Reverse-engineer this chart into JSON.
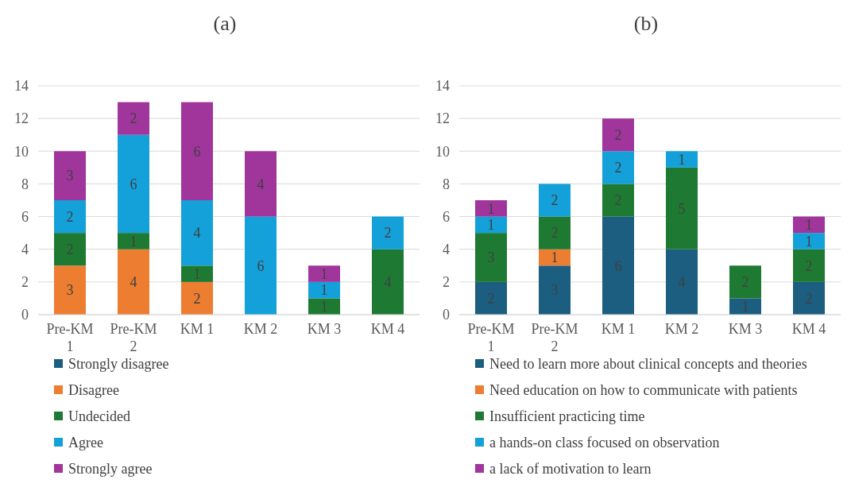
{
  "chart_data": [
    {
      "type": "bar",
      "title": "(a)",
      "stacked": true,
      "data_labels": true,
      "grid": "y",
      "legend": "bottom",
      "categories": [
        "Pre-KM 1",
        "Pre-KM 2",
        "KM 1",
        "KM 2",
        "KM 3",
        "KM 4"
      ],
      "ylim": [
        0,
        14
      ],
      "yticks": [
        0,
        2,
        4,
        6,
        8,
        10,
        12,
        14
      ],
      "series": [
        {
          "name": "Strongly disagree",
          "color": "#1b5e80",
          "values": [
            null,
            null,
            null,
            null,
            null,
            null
          ]
        },
        {
          "name": "Disagree",
          "color": "#ed7d31",
          "values": [
            3,
            4,
            2,
            null,
            null,
            null
          ]
        },
        {
          "name": "Undecided",
          "color": "#1e7a32",
          "values": [
            2,
            1,
            1,
            null,
            1,
            4
          ]
        },
        {
          "name": "Agree",
          "color": "#14a0d8",
          "values": [
            2,
            6,
            4,
            6,
            1,
            2
          ]
        },
        {
          "name": "Strongly agree",
          "color": "#a0359b",
          "values": [
            3,
            2,
            6,
            4,
            1,
            null
          ]
        }
      ]
    },
    {
      "type": "bar",
      "title": "(b)",
      "stacked": true,
      "data_labels": true,
      "grid": "y",
      "legend": "bottom",
      "categories": [
        "Pre-KM 1",
        "Pre-KM 2",
        "KM 1",
        "KM 2",
        "KM 3",
        "KM 4"
      ],
      "ylim": [
        0,
        14
      ],
      "yticks": [
        0,
        2,
        4,
        6,
        8,
        10,
        12,
        14
      ],
      "series": [
        {
          "name": "Need to learn more about clinical concepts and theories",
          "color": "#1b5e80",
          "values": [
            2,
            3,
            6,
            4,
            1,
            2
          ]
        },
        {
          "name": "Need education on how to communicate with patients",
          "color": "#ed7d31",
          "values": [
            null,
            1,
            null,
            null,
            null,
            null
          ]
        },
        {
          "name": "Insufficient practicing time",
          "color": "#1e7a32",
          "values": [
            3,
            2,
            2,
            5,
            2,
            2
          ]
        },
        {
          "name": "a hands-on class focused on observation",
          "color": "#14a0d8",
          "values": [
            1,
            2,
            2,
            1,
            null,
            1
          ]
        },
        {
          "name": "a lack of motivation to learn",
          "color": "#a0359b",
          "values": [
            1,
            null,
            2,
            null,
            null,
            1
          ]
        }
      ]
    }
  ]
}
